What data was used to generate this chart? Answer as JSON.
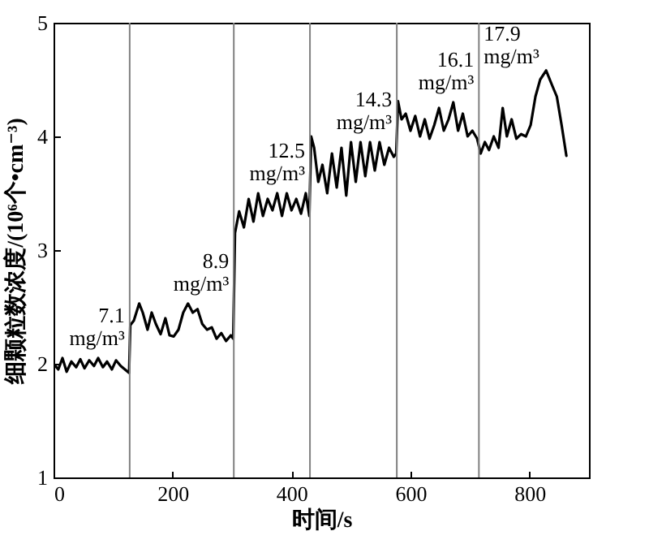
{
  "chart_data": {
    "type": "line",
    "xlabel": "时间/s",
    "ylabel": "细颗粒数浓度/(10⁶个•cm⁻³)",
    "xlim": [
      0,
      900
    ],
    "xticks": [
      0,
      200,
      400,
      600,
      800
    ],
    "ylim": [
      1,
      5
    ],
    "yticks": [
      1,
      2,
      3,
      4,
      5
    ],
    "grid": false,
    "marker": "none",
    "series": [
      {
        "color": "#000000",
        "x": [
          0,
          8,
          15,
          22,
          30,
          38,
          45,
          52,
          60,
          68,
          75,
          83,
          90,
          98,
          105,
          113,
          120,
          127,
          129,
          135,
          144,
          150,
          158,
          165,
          172,
          180,
          188,
          195,
          202,
          210,
          218,
          226,
          234,
          242,
          250,
          258,
          266,
          274,
          282,
          290,
          298,
          302,
          305,
          312,
          320,
          328,
          336,
          344,
          352,
          360,
          368,
          376,
          384,
          392,
          400,
          408,
          416,
          424,
          430,
          433,
          438,
          445,
          452,
          460,
          468,
          476,
          484,
          492,
          500,
          508,
          516,
          524,
          532,
          540,
          548,
          556,
          564,
          572,
          576,
          579,
          585,
          592,
          600,
          608,
          616,
          624,
          632,
          640,
          648,
          656,
          664,
          672,
          680,
          688,
          696,
          704,
          712,
          718,
          725,
          732,
          740,
          748,
          755,
          762,
          770,
          778,
          786,
          794,
          802,
          810,
          818,
          828,
          838,
          846,
          854,
          862
        ],
        "values": [
          2.0,
          1.95,
          2.05,
          1.93,
          2.02,
          1.97,
          2.04,
          1.96,
          2.03,
          1.98,
          2.05,
          1.97,
          2.02,
          1.95,
          2.03,
          1.98,
          1.95,
          1.92,
          2.34,
          2.38,
          2.53,
          2.45,
          2.3,
          2.45,
          2.35,
          2.26,
          2.4,
          2.25,
          2.24,
          2.3,
          2.45,
          2.53,
          2.45,
          2.48,
          2.35,
          2.3,
          2.32,
          2.22,
          2.27,
          2.2,
          2.25,
          2.22,
          3.15,
          3.34,
          3.2,
          3.45,
          3.25,
          3.5,
          3.3,
          3.45,
          3.35,
          3.5,
          3.3,
          3.5,
          3.35,
          3.45,
          3.32,
          3.5,
          3.3,
          4.0,
          3.9,
          3.6,
          3.75,
          3.5,
          3.85,
          3.55,
          3.9,
          3.48,
          3.95,
          3.6,
          3.95,
          3.65,
          3.95,
          3.7,
          3.95,
          3.75,
          3.9,
          3.82,
          3.85,
          4.31,
          4.15,
          4.2,
          4.05,
          4.18,
          4.0,
          4.15,
          3.98,
          4.1,
          4.25,
          4.05,
          4.15,
          4.3,
          4.05,
          4.2,
          4.0,
          4.05,
          3.98,
          3.85,
          3.95,
          3.88,
          4.0,
          3.9,
          4.25,
          4.0,
          4.15,
          3.98,
          4.02,
          4.0,
          4.1,
          4.35,
          4.5,
          4.58,
          4.45,
          4.35,
          4.1,
          3.83
        ]
      }
    ],
    "ref_lines": [
      {
        "axis": "x",
        "value": 128,
        "color": "#808080"
      },
      {
        "axis": "x",
        "value": 303,
        "color": "#808080"
      },
      {
        "axis": "x",
        "value": 431,
        "color": "#808080"
      },
      {
        "axis": "x",
        "value": 577,
        "color": "#808080"
      },
      {
        "axis": "x",
        "value": 715,
        "color": "#808080"
      }
    ],
    "annotations": [
      "7.1 mg/m³",
      "8.9 mg/m³",
      "12.5 mg/m³",
      "14.3 mg/m³",
      "16.1 mg/m³",
      "17.9 mg/m³"
    ]
  }
}
